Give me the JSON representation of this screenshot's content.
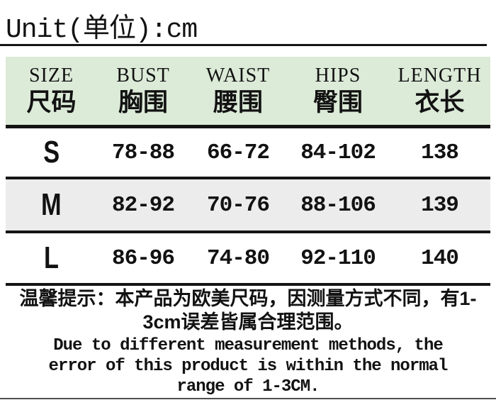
{
  "title": "Unit(单位):cm",
  "table": {
    "columns": [
      {
        "en": "SIZE",
        "cn": "尺码"
      },
      {
        "en": "BUST",
        "cn": "胸围"
      },
      {
        "en": "WAIST",
        "cn": "腰围"
      },
      {
        "en": "HIPS",
        "cn": "臀围"
      },
      {
        "en": "LENGTH",
        "cn": "衣长"
      }
    ],
    "rows": [
      {
        "size": "S",
        "bust": "78-88",
        "waist": "66-72",
        "hips": "84-102",
        "length": "138"
      },
      {
        "size": "M",
        "bust": "82-92",
        "waist": "70-76",
        "hips": "88-106",
        "length": "139"
      },
      {
        "size": "L",
        "bust": "86-96",
        "waist": "74-80",
        "hips": "92-110",
        "length": "140"
      }
    ]
  },
  "notes": {
    "cn_lines": [
      "温馨提示：本产品为欧美尺码，因测量方式不同，有1-",
      "3cm误差皆属合理范围。"
    ],
    "en_lines": [
      "Due to different measurement methods, the",
      "error of this product is within the normal",
      "range of 1-3CM."
    ]
  },
  "colors": {
    "header_bg": "#dcead8",
    "alt_row_bg": "#ececec",
    "rule": "#141414"
  }
}
